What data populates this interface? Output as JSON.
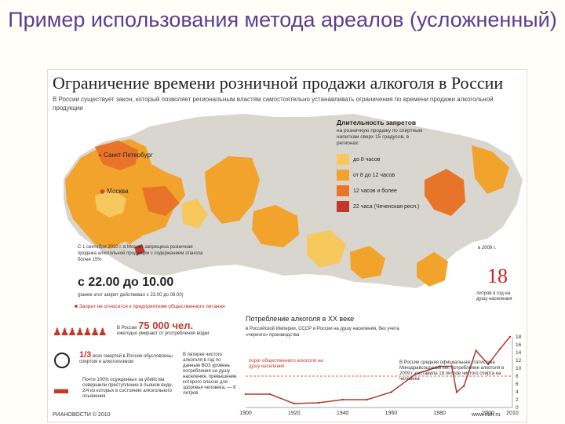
{
  "slide": {
    "title": "Пример использования метода ареалов (усложненный)"
  },
  "infographic": {
    "headline": "Ограничение времени розничной продажи алкоголя в России",
    "subtitle": "В России существует закон, который позволяет региональным властям самостоятельно устанавливать ограничения по времени продажи алкогольной продукции",
    "cities": {
      "spb": "Санкт-Петербург",
      "moscow": "Москва"
    },
    "legend": {
      "title": "Длительность запретов",
      "subtitle": "на розничную продажу по спиртным напиткам сверх 15 градусов, в регионах:",
      "items": [
        {
          "label": "до 8 часов",
          "color": "#f7c85e"
        },
        {
          "label": "от 8 до 12 часов",
          "color": "#f2a32b"
        },
        {
          "label": "12 часов и более",
          "color": "#e8742a"
        },
        {
          "label": "22 часа (Чеченская респ.)",
          "color": "#c0392b"
        }
      ]
    },
    "moscow_note": {
      "intro": "С 1 сентября 2010 г. в Москве запрещена розничная продажа алкогольной продукции с содержанием этанола более 15%",
      "time": "с 22.00 до 10.00",
      "after": "(ранее этот запрет действовал с 23.00 до 08.00)",
      "restaurants": "Запрет не относится к предприятиям общественного питания"
    },
    "side_note": {
      "prefix": "в 2009 г.",
      "number": "18",
      "suffix": "литров в год на душу населения"
    },
    "stats": {
      "deaths_prefix": "В России",
      "deaths_number": "75 000 чел.",
      "deaths_text": "ежегодно умирают от употребления водки",
      "share_number": "1/3",
      "share_text": "всех смертей в России обусловлены спиртом и алкоголизмом",
      "crime_number": "100%",
      "crime_text": "Почти 100% осужденных за убийства совершили преступление в пьяном виде, 2/4 из которых в состоянии алкогольного опьянения",
      "consumption_note": "В пятерке чистого алкоголя в год по данным ВОЗ уровень потребления на душу населения, превышение которого опасно для здоровья человека, — 8 литров"
    },
    "chart_title": "Потребление алкоголя в XX веке",
    "chart_subtitle": "в Российской Империи, СССР и России на душу населения, без учета «черного» производства",
    "chart_annotations": {
      "safe": "порог общественного алкоголя на душу населения",
      "latest": "В России средняя официальная статистика Минздравсоцразвития, потребление алкоголя в 2009 г. составила 18 литров чистого спирта на человека"
    },
    "footer_left": "РИАНОВОСТИ © 2010",
    "footer_right": "www.rian.ru"
  },
  "chart_data": {
    "type": "line",
    "title": "Потребление алкоголя в XX веке",
    "x": [
      1900,
      1910,
      1920,
      1930,
      1940,
      1950,
      1960,
      1970,
      1980,
      1985,
      1987,
      1990,
      1995,
      2000,
      2005,
      2009
    ],
    "series": [
      {
        "values": [
          3.4,
          3.4,
          1.0,
          1.2,
          2.0,
          2.0,
          3.9,
          8.5,
          10.5,
          10.5,
          3.9,
          5.5,
          14.5,
          11.0,
          15.0,
          18.0
        ]
      }
    ],
    "x_ticks": [
      "1900",
      "1920",
      "1940",
      "1960",
      "1980",
      "2000",
      "2010"
    ],
    "y_ticks": [
      0,
      2,
      4,
      6,
      8,
      10,
      12,
      14,
      16,
      18
    ],
    "xlim": [
      1900,
      2010
    ],
    "ylim": [
      0,
      18
    ],
    "threshold": 8
  }
}
